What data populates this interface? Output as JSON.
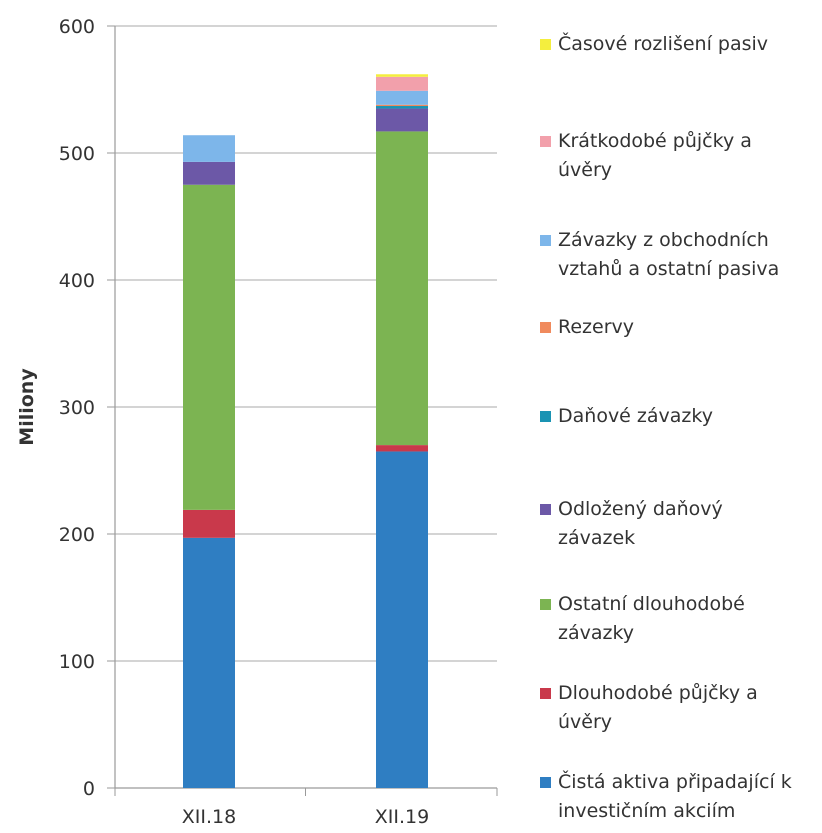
{
  "chart_data": {
    "type": "bar",
    "stacked": true,
    "title": "",
    "xlabel": "",
    "ylabel": "Miliony",
    "ylim": [
      0,
      600
    ],
    "yticks": [
      0,
      100,
      200,
      300,
      400,
      500,
      600
    ],
    "grid": true,
    "legend_position": "right",
    "categories": [
      "XII.18",
      "XII.19"
    ],
    "series": [
      {
        "name": "Čistá aktiva připadající k investičním akciím",
        "color": "#2f7ec2",
        "values": [
          197,
          265
        ]
      },
      {
        "name": "Dlouhodobé půjčky a úvěry",
        "color": "#c9394b",
        "values": [
          22,
          5
        ]
      },
      {
        "name": "Ostatní dlouhodobé závazky",
        "color": "#7cb452",
        "values": [
          256,
          247
        ]
      },
      {
        "name": "Odložený daňový závazek",
        "color": "#6c58a7",
        "values": [
          18,
          18
        ]
      },
      {
        "name": "Daňové závazky",
        "color": "#1a93b3",
        "values": [
          0,
          2
        ]
      },
      {
        "name": "Rezervy",
        "color": "#f08a5d",
        "values": [
          0,
          1
        ]
      },
      {
        "name": "Závazky z obchodních vztahů a ostatní pasiva",
        "color": "#7db6ea",
        "values": [
          21,
          11
        ]
      },
      {
        "name": "Krátkodobé půjčky a úvěry",
        "color": "#f2a0ab",
        "values": [
          0,
          11
        ]
      },
      {
        "name": "Časové rozlišení pasiv",
        "color": "#f4ee3e",
        "values": [
          0,
          2
        ]
      }
    ]
  },
  "legend_lines": [
    [
      "Časové rozlišení pasiv"
    ],
    [
      "Krátkodobé půjčky a",
      "úvěry"
    ],
    [
      "Závazky z obchodních",
      "vztahů a ostatní pasiva"
    ],
    [
      "Rezervy"
    ],
    [
      "Daňové závazky"
    ],
    [
      "Odložený daňový",
      "závazek"
    ],
    [
      "Ostatní dlouhodobé",
      "závazky"
    ],
    [
      "Dlouhodobé půjčky a",
      "úvěry"
    ],
    [
      "Čistá aktiva připadající k",
      "investičním akciím"
    ]
  ]
}
